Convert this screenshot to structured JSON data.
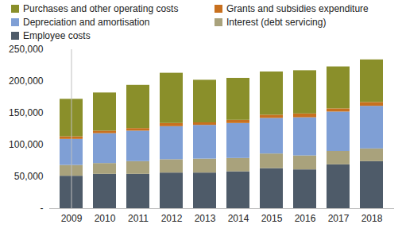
{
  "chart_data": {
    "type": "bar",
    "stacked": true,
    "grid": false,
    "legend": "top",
    "categories": [
      "2009",
      "2010",
      "2011",
      "2012",
      "2013",
      "2014",
      "2015",
      "2016",
      "2017",
      "2018"
    ],
    "series": [
      {
        "name": "Employee costs",
        "color": "#4e5b69",
        "values": [
          51000,
          54000,
          54000,
          56000,
          56000,
          58000,
          63000,
          61000,
          69000,
          74000
        ]
      },
      {
        "name": "Interest (debt servicing)",
        "color": "#a9a27c",
        "values": [
          17000,
          17000,
          20000,
          21000,
          22000,
          21000,
          23000,
          22000,
          21000,
          20000
        ]
      },
      {
        "name": "Depreciation and amortisation",
        "color": "#7f9fd5",
        "values": [
          41000,
          47000,
          48000,
          52000,
          53000,
          55000,
          56000,
          60000,
          62000,
          67000
        ]
      },
      {
        "name": "Grants and subsidies expenditure",
        "color": "#c8701e",
        "values": [
          4000,
          4000,
          4000,
          5000,
          4000,
          5000,
          5000,
          6000,
          5000,
          6000
        ]
      },
      {
        "name": "Purchases and other operating costs",
        "color": "#8a8f2a",
        "values": [
          59000,
          60000,
          68000,
          79000,
          67000,
          66000,
          68000,
          68000,
          66000,
          67000
        ]
      }
    ],
    "ylim": [
      0,
      250000
    ],
    "yticks": [
      {
        "value": 0,
        "label": "-"
      },
      {
        "value": 50000,
        "label": "50,000"
      },
      {
        "value": 100000,
        "label": "100,000"
      },
      {
        "value": 150000,
        "label": "150,000"
      },
      {
        "value": 200000,
        "label": "200,000"
      },
      {
        "value": 250000,
        "label": "250,000"
      }
    ]
  }
}
